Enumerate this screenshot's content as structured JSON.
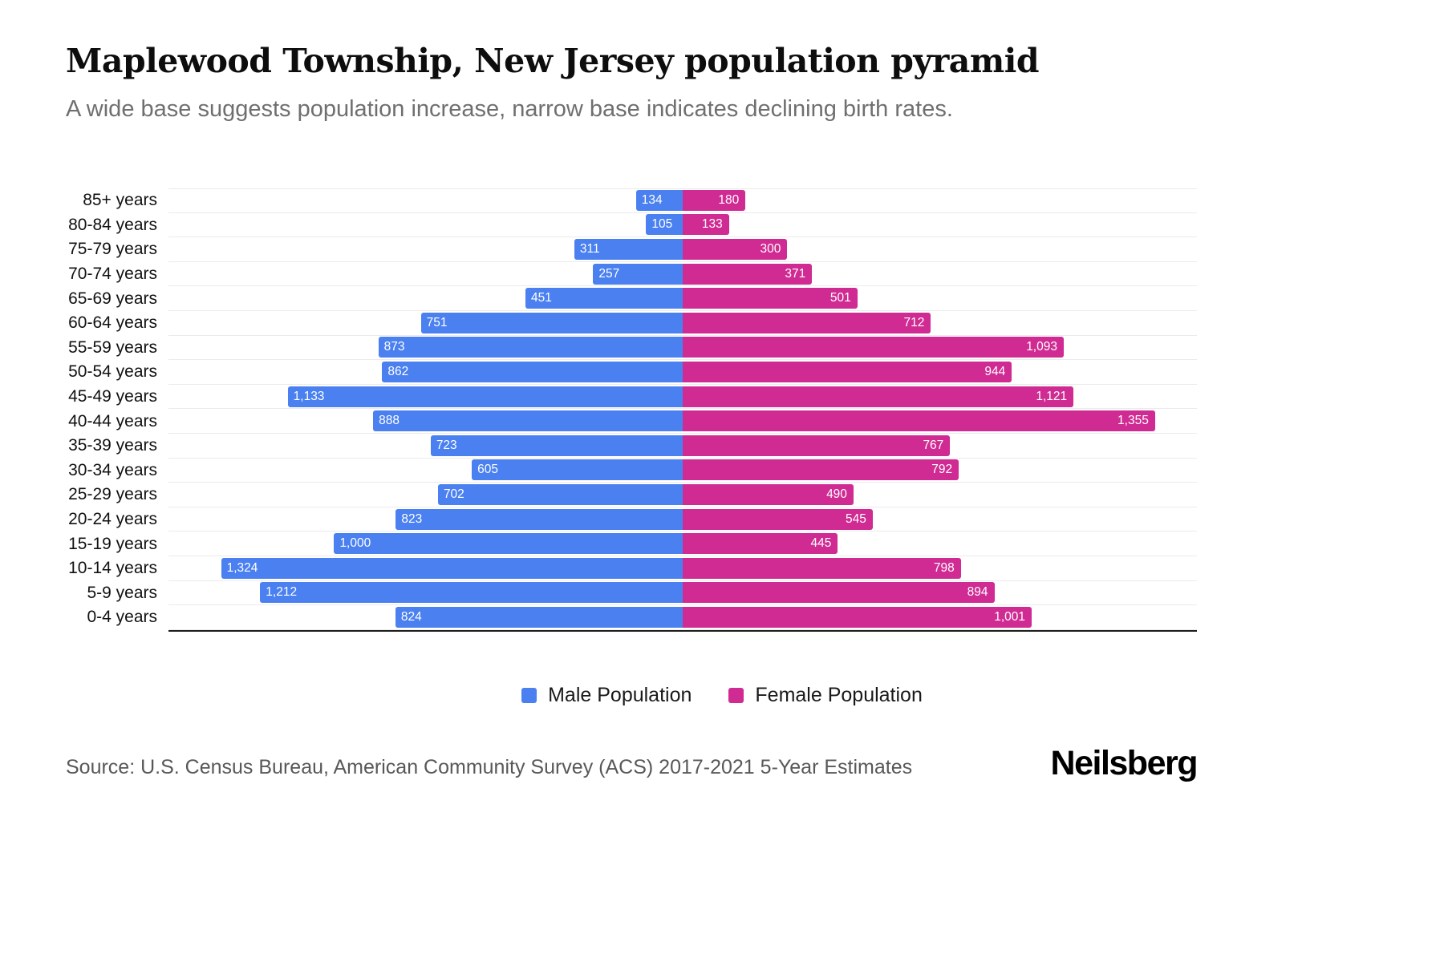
{
  "header": {
    "title": "Maplewood Township, New Jersey population pyramid",
    "subtitle": "A wide base suggests population increase, narrow base indicates declining birth rates."
  },
  "legend": {
    "items": [
      {
        "label": "Male Population",
        "color": "#4a80f0"
      },
      {
        "label": "Female Population",
        "color": "#d02b93"
      }
    ]
  },
  "footer": {
    "source": "Source: U.S. Census Bureau, American Community Survey (ACS) 2017-2021 5-Year Estimates",
    "brand": "Neilsberg"
  },
  "colors": {
    "male": "#4a80f0",
    "female": "#d02b93",
    "grid": "#ebebeb",
    "axis": "#1c1c1c"
  },
  "chart_data": {
    "type": "bar",
    "variant": "population_pyramid",
    "orientation": "horizontal",
    "title": "Maplewood Township, New Jersey population pyramid",
    "categories": [
      "85+ years",
      "80-84 years",
      "75-79 years",
      "70-74 years",
      "65-69 years",
      "60-64 years",
      "55-59 years",
      "50-54 years",
      "45-49 years",
      "40-44 years",
      "35-39 years",
      "30-34 years",
      "25-29 years",
      "20-24 years",
      "15-19 years",
      "10-14 years",
      "5-9 years",
      "0-4 years"
    ],
    "series": [
      {
        "name": "Male Population",
        "side": "left",
        "color": "#4a80f0",
        "values": [
          134,
          105,
          311,
          257,
          451,
          751,
          873,
          862,
          1133,
          888,
          723,
          605,
          702,
          823,
          1000,
          1324,
          1212,
          824
        ]
      },
      {
        "name": "Female Population",
        "side": "right",
        "color": "#d02b93",
        "values": [
          180,
          133,
          300,
          371,
          501,
          712,
          1093,
          944,
          1121,
          1355,
          767,
          792,
          490,
          545,
          445,
          798,
          894,
          1001
        ]
      }
    ],
    "xlim": [
      0,
      1475
    ],
    "grid": "horizontal-light",
    "legend_position": "bottom",
    "value_labels": "inside-bar-ends"
  }
}
